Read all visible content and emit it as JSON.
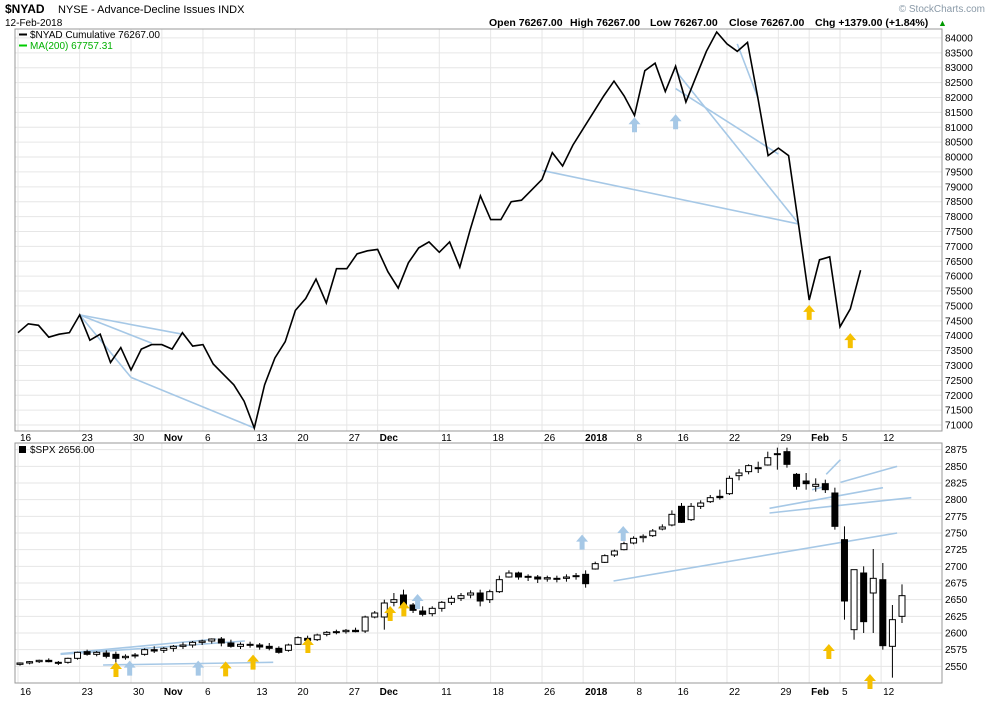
{
  "header": {
    "symbol": "$NYAD",
    "description": "NYSE - Advance-Decline Issues INDX",
    "watermark": "© StockCharts.com",
    "date": "12-Feb-2018",
    "open": "Open 76267.00",
    "high": "High 76267.00",
    "low": "Low 76267.00",
    "close": "Close 76267.00",
    "chg": "Chg +1379.00 (+1.84%)",
    "chg_arrow": "▲"
  },
  "colors": {
    "price": "#000000",
    "ma": "#00cc00",
    "trend": "#a6c8e6",
    "arrow_up_blue": "#a6c8e6",
    "arrow_up_yellow": "#f5c000",
    "grid": "#e6e6e6",
    "panel_border": "#999999"
  },
  "x_labels": [
    "16",
    "23",
    "30",
    "Nov",
    "6",
    "13",
    "20",
    "27",
    "Dec",
    "11",
    "18",
    "26",
    "2018",
    "8",
    "16",
    "22",
    "29",
    "Feb",
    "5",
    "12"
  ],
  "x_labels_bold": [
    "Nov",
    "Dec",
    "2018",
    "Feb"
  ],
  "chart_data": [
    {
      "type": "line",
      "legend": [
        {
          "label": "$NYAD Cumulative 76267.00",
          "color": "#000000"
        },
        {
          "label": "MA(200) 67757.31",
          "color": "#00cc00"
        }
      ],
      "ylim": [
        70800,
        84300
      ],
      "y_ticks": [
        71000,
        71500,
        72000,
        72500,
        73000,
        73500,
        74000,
        74500,
        75000,
        75500,
        76000,
        76500,
        77000,
        77500,
        78000,
        78500,
        79000,
        79500,
        80000,
        80500,
        81000,
        81500,
        82000,
        82500,
        83000,
        83500,
        84000
      ],
      "series": [
        {
          "values": [
            74100,
            74400,
            74350,
            73950,
            74050,
            74100,
            74700,
            73850,
            74050,
            73100,
            73600,
            72850,
            73550,
            73700,
            73700,
            73550,
            74100,
            73650,
            73700,
            73050,
            72700,
            72350,
            71800,
            70900,
            72350,
            73250,
            73800,
            74850,
            75250,
            75900,
            75100,
            76250,
            76250,
            76750,
            76850,
            76900,
            76150,
            75600,
            76450,
            76950,
            77150,
            76800,
            77150,
            76300,
            77550,
            78700,
            77900,
            77900,
            78500,
            78550,
            78900,
            79250,
            80150,
            79700,
            80400,
            80950,
            81500,
            82050,
            82550,
            82050,
            81400,
            82900,
            83150,
            82200,
            83050,
            81850,
            82700,
            83550,
            84200,
            83800,
            83550,
            83850,
            82000,
            80050,
            80300,
            80050,
            77650,
            75200,
            76550,
            76650,
            74300,
            74900,
            76200
          ]
        }
      ],
      "trend_lines": [
        {
          "from": [
            6,
            74700
          ],
          "to": [
            16,
            74050
          ]
        },
        {
          "from": [
            6,
            74700
          ],
          "to": [
            11,
            72600
          ]
        },
        {
          "from": [
            6,
            74700
          ],
          "to": [
            13,
            73750
          ]
        },
        {
          "from": [
            11,
            72600
          ],
          "to": [
            23,
            70900
          ]
        },
        {
          "from": [
            51,
            79550
          ],
          "to": [
            76,
            77750
          ]
        },
        {
          "from": [
            64,
            82300
          ],
          "to": [
            74,
            80100
          ]
        },
        {
          "from": [
            64,
            82900
          ],
          "to": [
            76,
            77750
          ]
        },
        {
          "from": [
            70,
            83800
          ],
          "to": [
            72,
            82000
          ]
        }
      ],
      "arrows": [
        {
          "x": 60,
          "value": 81100,
          "color": "blue"
        },
        {
          "x": 64,
          "value": 81200,
          "color": "blue"
        },
        {
          "x": 77,
          "value": 74800,
          "color": "yellow"
        },
        {
          "x": 81,
          "value": 73850,
          "color": "yellow"
        }
      ]
    },
    {
      "type": "candlestick",
      "legend": [
        {
          "label": "$SPX 2656.00",
          "color": "#000000"
        }
      ],
      "ylim": [
        2525,
        2885
      ],
      "y_ticks": [
        2550,
        2575,
        2600,
        2625,
        2650,
        2675,
        2700,
        2725,
        2750,
        2775,
        2800,
        2825,
        2850,
        2875
      ],
      "candles": [
        [
          2553,
          2556,
          2551,
          2555
        ],
        [
          2555,
          2558,
          2553,
          2557
        ],
        [
          2557,
          2560,
          2555,
          2559
        ],
        [
          2559,
          2562,
          2556,
          2557
        ],
        [
          2556,
          2558,
          2552,
          2555
        ],
        [
          2556,
          2563,
          2554,
          2562
        ],
        [
          2562,
          2572,
          2560,
          2571
        ],
        [
          2572,
          2575,
          2566,
          2568
        ],
        [
          2568,
          2573,
          2565,
          2571
        ],
        [
          2570,
          2574,
          2562,
          2565
        ],
        [
          2568,
          2572,
          2548,
          2562
        ],
        [
          2563,
          2568,
          2560,
          2565
        ],
        [
          2566,
          2570,
          2562,
          2567
        ],
        [
          2568,
          2577,
          2566,
          2575
        ],
        [
          2575,
          2580,
          2570,
          2573
        ],
        [
          2574,
          2579,
          2570,
          2577
        ],
        [
          2577,
          2582,
          2572,
          2580
        ],
        [
          2580,
          2586,
          2576,
          2582
        ],
        [
          2582,
          2588,
          2578,
          2586
        ],
        [
          2586,
          2590,
          2582,
          2588
        ],
        [
          2588,
          2592,
          2584,
          2591
        ],
        [
          2591,
          2594,
          2580,
          2585
        ],
        [
          2585,
          2590,
          2578,
          2580
        ],
        [
          2580,
          2586,
          2576,
          2583
        ],
        [
          2583,
          2587,
          2578,
          2582
        ],
        [
          2582,
          2585,
          2575,
          2579
        ],
        [
          2580,
          2585,
          2574,
          2577
        ],
        [
          2577,
          2580,
          2569,
          2571
        ],
        [
          2574,
          2584,
          2572,
          2582
        ],
        [
          2583,
          2595,
          2582,
          2593
        ],
        [
          2592,
          2596,
          2586,
          2589
        ],
        [
          2590,
          2599,
          2588,
          2597
        ],
        [
          2598,
          2603,
          2595,
          2601
        ],
        [
          2601,
          2605,
          2598,
          2602
        ],
        [
          2602,
          2606,
          2599,
          2604
        ],
        [
          2604,
          2608,
          2601,
          2602
        ],
        [
          2603,
          2626,
          2600,
          2624
        ],
        [
          2624,
          2633,
          2622,
          2630
        ],
        [
          2624,
          2650,
          2605,
          2645
        ],
        [
          2646,
          2660,
          2640,
          2650
        ],
        [
          2657,
          2665,
          2638,
          2640
        ],
        [
          2642,
          2645,
          2630,
          2634
        ],
        [
          2633,
          2640,
          2625,
          2628
        ],
        [
          2629,
          2640,
          2625,
          2637
        ],
        [
          2637,
          2648,
          2632,
          2646
        ],
        [
          2646,
          2656,
          2642,
          2652
        ],
        [
          2652,
          2660,
          2648,
          2656
        ],
        [
          2657,
          2664,
          2652,
          2660
        ],
        [
          2660,
          2665,
          2640,
          2648
        ],
        [
          2650,
          2665,
          2645,
          2662
        ],
        [
          2662,
          2686,
          2660,
          2680
        ],
        [
          2684,
          2694,
          2683,
          2690
        ],
        [
          2690,
          2692,
          2680,
          2684
        ],
        [
          2685,
          2688,
          2678,
          2685
        ],
        [
          2684,
          2687,
          2675,
          2681
        ],
        [
          2681,
          2686,
          2677,
          2683
        ],
        [
          2681,
          2686,
          2676,
          2682
        ],
        [
          2682,
          2688,
          2677,
          2684
        ],
        [
          2685,
          2690,
          2680,
          2686
        ],
        [
          2688,
          2694,
          2668,
          2674
        ],
        [
          2696,
          2707,
          2695,
          2704
        ],
        [
          2706,
          2718,
          2705,
          2716
        ],
        [
          2717,
          2725,
          2714,
          2723
        ],
        [
          2725,
          2737,
          2724,
          2734
        ],
        [
          2735,
          2745,
          2733,
          2742
        ],
        [
          2743,
          2748,
          2736,
          2745
        ],
        [
          2746,
          2756,
          2744,
          2753
        ],
        [
          2756,
          2763,
          2754,
          2759
        ],
        [
          2762,
          2784,
          2760,
          2778
        ],
        [
          2790,
          2795,
          2765,
          2766
        ],
        [
          2770,
          2795,
          2768,
          2790
        ],
        [
          2790,
          2799,
          2786,
          2795
        ],
        [
          2797,
          2807,
          2795,
          2803
        ],
        [
          2805,
          2815,
          2800,
          2803
        ],
        [
          2809,
          2836,
          2807,
          2832
        ],
        [
          2836,
          2846,
          2829,
          2840
        ],
        [
          2842,
          2853,
          2838,
          2851
        ],
        [
          2848,
          2857,
          2840,
          2847
        ],
        [
          2852,
          2872,
          2851,
          2863
        ],
        [
          2869,
          2878,
          2845,
          2868
        ],
        [
          2872,
          2878,
          2848,
          2853
        ],
        [
          2838,
          2840,
          2815,
          2820
        ],
        [
          2828,
          2840,
          2815,
          2824
        ],
        [
          2820,
          2832,
          2812,
          2823
        ],
        [
          2824,
          2830,
          2810,
          2815
        ],
        [
          2810,
          2818,
          2755,
          2760
        ],
        [
          2740,
          2760,
          2620,
          2648
        ],
        [
          2605,
          2695,
          2590,
          2695
        ],
        [
          2690,
          2700,
          2600,
          2617
        ],
        [
          2660,
          2726,
          2600,
          2682
        ],
        [
          2680,
          2705,
          2575,
          2581
        ],
        [
          2580,
          2642,
          2533,
          2620
        ],
        [
          2625,
          2673,
          2615,
          2656
        ]
      ],
      "trend_lines": [
        {
          "from": [
            3,
            2569
          ],
          "to": [
            14,
            2591
          ]
        },
        {
          "from": [
            3,
            2568
          ],
          "to": [
            16,
            2588
          ]
        },
        {
          "from": [
            6,
            2552
          ],
          "to": [
            18,
            2556
          ]
        },
        {
          "from": [
            42,
            2678
          ],
          "to": [
            62,
            2750
          ]
        },
        {
          "from": [
            53,
            2780
          ],
          "to": [
            63,
            2803
          ]
        },
        {
          "from": [
            53,
            2787
          ],
          "to": [
            61,
            2818
          ]
        },
        {
          "from": [
            56,
            2815
          ],
          "to": [
            57,
            2820
          ]
        },
        {
          "from": [
            57,
            2838
          ],
          "to": [
            58,
            2860
          ]
        },
        {
          "from": [
            58,
            2826
          ],
          "to": [
            62,
            2850
          ]
        }
      ],
      "arrows": [
        {
          "x": 7,
          "value": 2546,
          "color": "yellow"
        },
        {
          "x": 8,
          "value": 2548,
          "color": "blue"
        },
        {
          "x": 13,
          "value": 2548,
          "color": "blue"
        },
        {
          "x": 15,
          "value": 2547,
          "color": "yellow"
        },
        {
          "x": 17,
          "value": 2557,
          "color": "yellow"
        },
        {
          "x": 21,
          "value": 2582,
          "color": "yellow"
        },
        {
          "x": 27,
          "value": 2630,
          "color": "yellow"
        },
        {
          "x": 28,
          "value": 2637,
          "color": "yellow"
        },
        {
          "x": 29,
          "value": 2648,
          "color": "blue"
        },
        {
          "x": 41,
          "value": 2737,
          "color": "blue"
        },
        {
          "x": 44,
          "value": 2750,
          "color": "blue"
        },
        {
          "x": 59,
          "value": 2573,
          "color": "yellow"
        },
        {
          "x": 62,
          "value": 2528,
          "color": "yellow"
        }
      ]
    }
  ]
}
